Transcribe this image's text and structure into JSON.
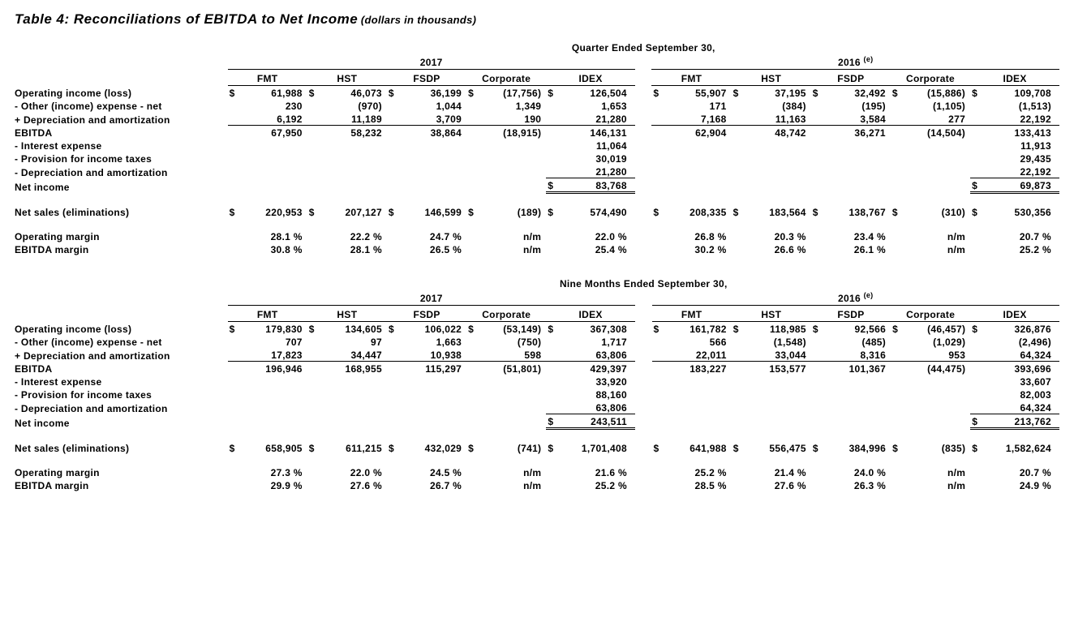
{
  "title_main": "Table 4: Reconciliations of EBITDA to Net Income",
  "title_sub": "(dollars in thousands)",
  "tables": [
    {
      "period_header": "Quarter Ended September 30,",
      "year_left": "2017",
      "year_right": "2016",
      "year_right_note": "(e)",
      "columns": [
        "FMT",
        "HST",
        "FSDP",
        "Corporate",
        "IDEX",
        "FMT",
        "HST",
        "FSDP",
        "Corporate",
        "IDEX"
      ],
      "rows": [
        {
          "label": "Operating income (loss)",
          "cells": [
            {
              "sym": "$",
              "val": "61,988"
            },
            {
              "sym": "$",
              "val": "46,073"
            },
            {
              "sym": "$",
              "val": "36,199"
            },
            {
              "sym": "$",
              "val": "(17,756)"
            },
            {
              "sym": "$",
              "val": "126,504"
            },
            {
              "sym": "$",
              "val": "55,907"
            },
            {
              "sym": "$",
              "val": "37,195"
            },
            {
              "sym": "$",
              "val": "32,492"
            },
            {
              "sym": "$",
              "val": "(15,886)"
            },
            {
              "sym": "$",
              "val": "109,708"
            }
          ]
        },
        {
          "label": "- Other (income) expense - net",
          "cells": [
            {
              "val": "230"
            },
            {
              "val": "(970)"
            },
            {
              "val": "1,044"
            },
            {
              "val": "1,349"
            },
            {
              "val": "1,653"
            },
            {
              "val": "171"
            },
            {
              "val": "(384)"
            },
            {
              "val": "(195)"
            },
            {
              "val": "(1,105)"
            },
            {
              "val": "(1,513)"
            }
          ]
        },
        {
          "label": "+ Depreciation and amortization",
          "underline": "bottom",
          "cells": [
            {
              "val": "6,192"
            },
            {
              "val": "11,189"
            },
            {
              "val": "3,709"
            },
            {
              "val": "190"
            },
            {
              "val": "21,280"
            },
            {
              "val": "7,168"
            },
            {
              "val": "11,163"
            },
            {
              "val": "3,584"
            },
            {
              "val": "277"
            },
            {
              "val": "22,192"
            }
          ]
        },
        {
          "label": "EBITDA",
          "cells": [
            {
              "val": "67,950"
            },
            {
              "val": "58,232"
            },
            {
              "val": "38,864"
            },
            {
              "val": "(18,915)"
            },
            {
              "val": "146,131"
            },
            {
              "val": "62,904"
            },
            {
              "val": "48,742"
            },
            {
              "val": "36,271"
            },
            {
              "val": "(14,504)"
            },
            {
              "val": "133,413"
            }
          ]
        },
        {
          "label": "- Interest expense",
          "cells": [
            {},
            {},
            {},
            {},
            {
              "val": "11,064"
            },
            {},
            {},
            {},
            {},
            {
              "val": "11,913"
            }
          ]
        },
        {
          "label": "- Provision for income taxes",
          "cells": [
            {},
            {},
            {},
            {},
            {
              "val": "30,019"
            },
            {},
            {},
            {},
            {},
            {
              "val": "29,435"
            }
          ]
        },
        {
          "label": "- Depreciation and amortization",
          "underline_idex": "bottom",
          "cells": [
            {},
            {},
            {},
            {},
            {
              "val": "21,280"
            },
            {},
            {},
            {},
            {},
            {
              "val": "22,192"
            }
          ]
        },
        {
          "label": "Net income",
          "double_idex": true,
          "cells": [
            {},
            {},
            {},
            {},
            {
              "sym": "$",
              "val": "83,768"
            },
            {},
            {},
            {},
            {},
            {
              "sym": "$",
              "val": "69,873"
            }
          ]
        },
        {
          "spacer": true
        },
        {
          "label": "Net sales (eliminations)",
          "cells": [
            {
              "sym": "$",
              "val": "220,953"
            },
            {
              "sym": "$",
              "val": "207,127"
            },
            {
              "sym": "$",
              "val": "146,599"
            },
            {
              "sym": "$",
              "val": "(189)"
            },
            {
              "sym": "$",
              "val": "574,490"
            },
            {
              "sym": "$",
              "val": "208,335"
            },
            {
              "sym": "$",
              "val": "183,564"
            },
            {
              "sym": "$",
              "val": "138,767"
            },
            {
              "sym": "$",
              "val": "(310)"
            },
            {
              "sym": "$",
              "val": "530,356"
            }
          ]
        },
        {
          "spacer": true
        },
        {
          "label": "Operating margin",
          "cells": [
            {
              "val": "28.1 %"
            },
            {
              "val": "22.2 %"
            },
            {
              "val": "24.7 %"
            },
            {
              "val": "n/m"
            },
            {
              "val": "22.0 %"
            },
            {
              "val": "26.8 %"
            },
            {
              "val": "20.3 %"
            },
            {
              "val": "23.4 %"
            },
            {
              "val": "n/m"
            },
            {
              "val": "20.7 %"
            }
          ]
        },
        {
          "label": "EBITDA margin",
          "cells": [
            {
              "val": "30.8 %"
            },
            {
              "val": "28.1 %"
            },
            {
              "val": "26.5 %"
            },
            {
              "val": "n/m"
            },
            {
              "val": "25.4 %"
            },
            {
              "val": "30.2 %"
            },
            {
              "val": "26.6 %"
            },
            {
              "val": "26.1 %"
            },
            {
              "val": "n/m"
            },
            {
              "val": "25.2 %"
            }
          ]
        }
      ]
    },
    {
      "period_header": "Nine Months Ended September 30,",
      "year_left": "2017",
      "year_right": "2016",
      "year_right_note": "(e)",
      "columns": [
        "FMT",
        "HST",
        "FSDP",
        "Corporate",
        "IDEX",
        "FMT",
        "HST",
        "FSDP",
        "Corporate",
        "IDEX"
      ],
      "rows": [
        {
          "label": "Operating income (loss)",
          "cells": [
            {
              "sym": "$",
              "val": "179,830"
            },
            {
              "sym": "$",
              "val": "134,605"
            },
            {
              "sym": "$",
              "val": "106,022"
            },
            {
              "sym": "$",
              "val": "(53,149)"
            },
            {
              "sym": "$",
              "val": "367,308"
            },
            {
              "sym": "$",
              "val": "161,782"
            },
            {
              "sym": "$",
              "val": "118,985"
            },
            {
              "sym": "$",
              "val": "92,566"
            },
            {
              "sym": "$",
              "val": "(46,457)"
            },
            {
              "sym": "$",
              "val": "326,876"
            }
          ]
        },
        {
          "label": "- Other (income) expense - net",
          "cells": [
            {
              "val": "707"
            },
            {
              "val": "97"
            },
            {
              "val": "1,663"
            },
            {
              "val": "(750)"
            },
            {
              "val": "1,717"
            },
            {
              "val": "566"
            },
            {
              "val": "(1,548)"
            },
            {
              "val": "(485)"
            },
            {
              "val": "(1,029)"
            },
            {
              "val": "(2,496)"
            }
          ]
        },
        {
          "label": "+ Depreciation and amortization",
          "underline": "bottom",
          "cells": [
            {
              "val": "17,823"
            },
            {
              "val": "34,447"
            },
            {
              "val": "10,938"
            },
            {
              "val": "598"
            },
            {
              "val": "63,806"
            },
            {
              "val": "22,011"
            },
            {
              "val": "33,044"
            },
            {
              "val": "8,316"
            },
            {
              "val": "953"
            },
            {
              "val": "64,324"
            }
          ]
        },
        {
          "label": "EBITDA",
          "cells": [
            {
              "val": "196,946"
            },
            {
              "val": "168,955"
            },
            {
              "val": "115,297"
            },
            {
              "val": "(51,801)"
            },
            {
              "val": "429,397"
            },
            {
              "val": "183,227"
            },
            {
              "val": "153,577"
            },
            {
              "val": "101,367"
            },
            {
              "val": "(44,475)"
            },
            {
              "val": "393,696"
            }
          ]
        },
        {
          "label": "- Interest expense",
          "cells": [
            {},
            {},
            {},
            {},
            {
              "val": "33,920"
            },
            {},
            {},
            {},
            {},
            {
              "val": "33,607"
            }
          ]
        },
        {
          "label": "- Provision for income taxes",
          "cells": [
            {},
            {},
            {},
            {},
            {
              "val": "88,160"
            },
            {},
            {},
            {},
            {},
            {
              "val": "82,003"
            }
          ]
        },
        {
          "label": "- Depreciation and amortization",
          "underline_idex": "bottom",
          "cells": [
            {},
            {},
            {},
            {},
            {
              "val": "63,806"
            },
            {},
            {},
            {},
            {},
            {
              "val": "64,324"
            }
          ]
        },
        {
          "label": "Net income",
          "double_idex": true,
          "cells": [
            {},
            {},
            {},
            {},
            {
              "sym": "$",
              "val": "243,511"
            },
            {},
            {},
            {},
            {},
            {
              "sym": "$",
              "val": "213,762"
            }
          ]
        },
        {
          "spacer": true
        },
        {
          "label": "Net sales (eliminations)",
          "cells": [
            {
              "sym": "$",
              "val": "658,905"
            },
            {
              "sym": "$",
              "val": "611,215"
            },
            {
              "sym": "$",
              "val": "432,029"
            },
            {
              "sym": "$",
              "val": "(741)"
            },
            {
              "sym": "$",
              "val": "1,701,408"
            },
            {
              "sym": "$",
              "val": "641,988"
            },
            {
              "sym": "$",
              "val": "556,475"
            },
            {
              "sym": "$",
              "val": "384,996"
            },
            {
              "sym": "$",
              "val": "(835)"
            },
            {
              "sym": "$",
              "val": "1,582,624"
            }
          ]
        },
        {
          "spacer": true
        },
        {
          "label": "Operating margin",
          "cells": [
            {
              "val": "27.3 %"
            },
            {
              "val": "22.0 %"
            },
            {
              "val": "24.5 %"
            },
            {
              "val": "n/m"
            },
            {
              "val": "21.6 %"
            },
            {
              "val": "25.2 %"
            },
            {
              "val": "21.4 %"
            },
            {
              "val": "24.0 %"
            },
            {
              "val": "n/m"
            },
            {
              "val": "20.7 %"
            }
          ]
        },
        {
          "label": "EBITDA margin",
          "cells": [
            {
              "val": "29.9 %"
            },
            {
              "val": "27.6 %"
            },
            {
              "val": "26.7 %"
            },
            {
              "val": "n/m"
            },
            {
              "val": "25.2 %"
            },
            {
              "val": "28.5 %"
            },
            {
              "val": "27.6 %"
            },
            {
              "val": "26.3 %"
            },
            {
              "val": "n/m"
            },
            {
              "val": "24.9 %"
            }
          ]
        }
      ]
    }
  ]
}
